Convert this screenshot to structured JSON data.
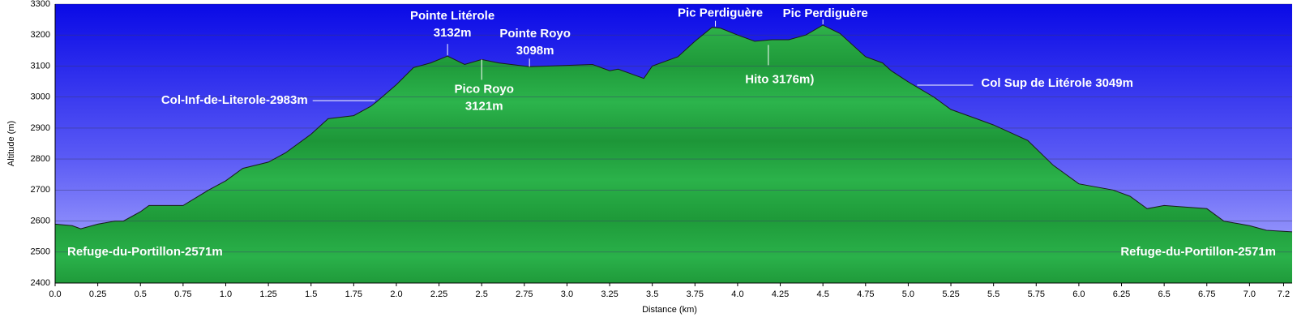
{
  "chart_data": {
    "type": "area",
    "x": [
      0,
      0.1,
      0.15,
      0.25,
      0.35,
      0.4,
      0.5,
      0.55,
      0.75,
      0.9,
      1.0,
      1.1,
      1.25,
      1.35,
      1.5,
      1.6,
      1.75,
      1.85,
      1.88,
      2.0,
      2.1,
      2.2,
      2.3,
      2.4,
      2.5,
      2.6,
      2.78,
      2.9,
      3.15,
      3.25,
      3.3,
      3.45,
      3.5,
      3.65,
      3.75,
      3.85,
      3.9,
      4.0,
      4.1,
      4.2,
      4.3,
      4.4,
      4.5,
      4.6,
      4.75,
      4.85,
      4.9,
      5.0,
      5.15,
      5.25,
      5.4,
      5.5,
      5.7,
      5.85,
      6.0,
      6.2,
      6.3,
      6.4,
      6.5,
      6.75,
      6.85,
      7.0,
      7.1,
      7.25
    ],
    "values": [
      2590,
      2585,
      2575,
      2590,
      2600,
      2600,
      2630,
      2650,
      2650,
      2700,
      2730,
      2770,
      2790,
      2820,
      2880,
      2930,
      2940,
      2970,
      2983,
      3040,
      3095,
      3110,
      3132,
      3105,
      3121,
      3110,
      3098,
      3100,
      3105,
      3085,
      3090,
      3060,
      3100,
      3130,
      3180,
      3225,
      3222,
      3200,
      3180,
      3185,
      3185,
      3200,
      3232,
      3205,
      3130,
      3110,
      3085,
      3049,
      3000,
      2960,
      2930,
      2910,
      2860,
      2780,
      2720,
      2700,
      2680,
      2640,
      2650,
      2640,
      2600,
      2585,
      2570,
      2565
    ],
    "color": "#22a844",
    "xlabel": "Distance (km)",
    "ylabel": "Altitude (m)",
    "xlim": [
      0,
      7.25
    ],
    "ylim": [
      2400,
      3300
    ],
    "xticks": [
      {
        "value": 0,
        "label": "0.0"
      },
      0.25,
      0.5,
      0.75,
      {
        "value": 1,
        "label": "1.0"
      },
      1.25,
      1.5,
      1.75,
      {
        "value": 2,
        "label": "2.0"
      },
      2.25,
      2.5,
      2.75,
      {
        "value": 3,
        "label": "3.0"
      },
      3.25,
      3.5,
      3.75,
      {
        "value": 4,
        "label": "4.0"
      },
      4.25,
      4.5,
      4.75,
      {
        "value": 5,
        "label": "5.0"
      },
      5.25,
      5.5,
      5.75,
      {
        "value": 6,
        "label": "6.0"
      },
      6.25,
      6.5,
      6.75,
      {
        "value": 7,
        "label": "7.0"
      },
      7.2
    ],
    "yticks": [
      2400,
      2500,
      2600,
      2700,
      2800,
      2900,
      3000,
      3100,
      3200,
      3300
    ],
    "grid": true,
    "annotations": [
      {
        "lines": [
          "Pointe Litérole",
          "3132m"
        ],
        "x": 2.3,
        "y": 3132
      },
      {
        "lines": [
          "Pico Royo",
          "3121m"
        ],
        "x": 2.5,
        "y": 3121
      },
      {
        "lines": [
          "Pointe Royo",
          "3098m"
        ],
        "x": 2.78,
        "y": 3098
      },
      {
        "lines": [
          "Pic Perdiguère"
        ],
        "x": 3.87,
        "y": 3225
      },
      {
        "lines": [
          "Pic Perdiguère"
        ],
        "x": 4.5,
        "y": 3232
      },
      {
        "lines": [
          "Hito 3176m)"
        ],
        "x": 4.18,
        "y": 3176
      },
      {
        "lines": [
          "Col-Inf-de-Literole-2983m"
        ],
        "x": 1.88,
        "y": 2983
      },
      {
        "lines": [
          "Col Sup de Litérole 3049m"
        ],
        "x": 5.0,
        "y": 3049
      }
    ],
    "labels": [
      "Refuge-du-Portillon-2571m",
      "Refuge-du-Portillon-2571m"
    ]
  }
}
